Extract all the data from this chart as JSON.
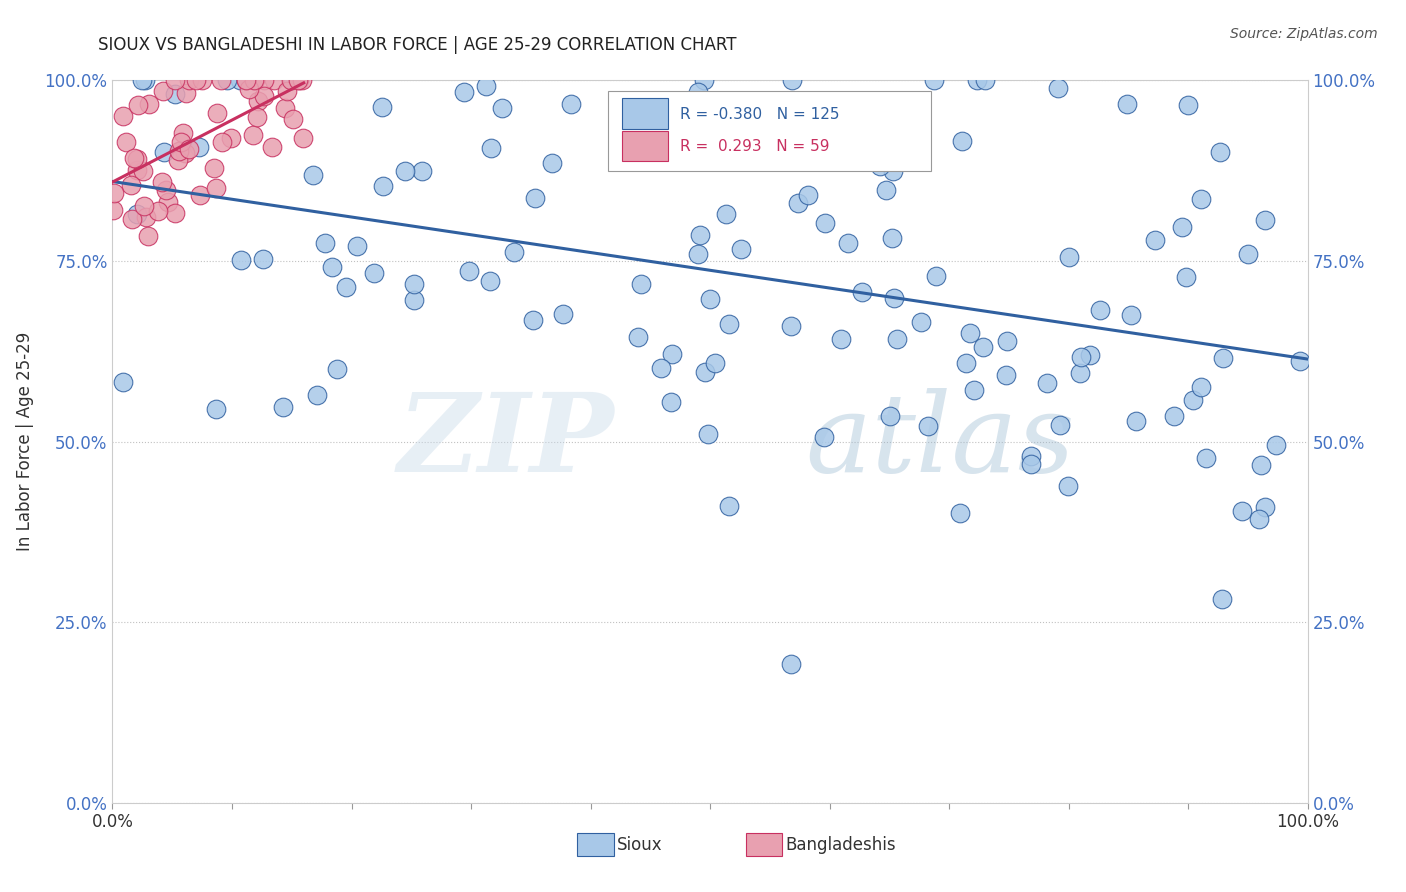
{
  "title": "SIOUX VS BANGLADESHI IN LABOR FORCE | AGE 25-29 CORRELATION CHART",
  "source": "Source: ZipAtlas.com",
  "xlabel_sioux": "Sioux",
  "xlabel_bangladeshi": "Bangladeshis",
  "ylabel": "In Labor Force | Age 25-29",
  "xlim": [
    0.0,
    1.0
  ],
  "ylim": [
    0.0,
    1.0
  ],
  "legend_r_sioux": "-0.380",
  "legend_n_sioux": "125",
  "legend_r_bangladeshi": "0.293",
  "legend_n_bangladeshi": "59",
  "sioux_color": "#a8c8e8",
  "bangladeshi_color": "#e8a0b0",
  "sioux_line_color": "#3060a0",
  "bangladeshi_line_color": "#c83060",
  "background_color": "#ffffff",
  "sioux_seed": 12345,
  "bangladeshi_seed": 67890,
  "sioux_trend_x0": 0.0,
  "sioux_trend_y0": 0.87,
  "sioux_trend_x1": 1.0,
  "sioux_trend_y1": 0.62,
  "bang_trend_x0": 0.0,
  "bang_trend_y0": 0.85,
  "bang_trend_x1": 0.16,
  "bang_trend_y1": 1.0
}
